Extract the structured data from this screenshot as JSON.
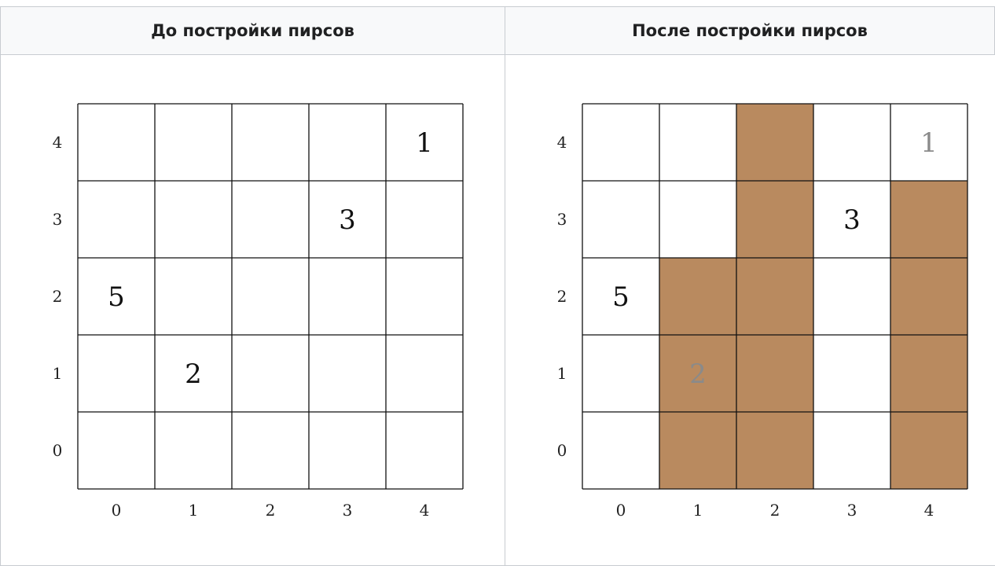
{
  "headers": {
    "before": "До постройки пирсов",
    "after": "После постройки пирсов"
  },
  "colors": {
    "pier": "#b98a5f",
    "grid_line": "#111111",
    "number_normal": "#111111",
    "number_faded": "#8a8a8a"
  },
  "chart_data": [
    {
      "type": "table",
      "grid_size": 5,
      "x_ticks": [
        "0",
        "1",
        "2",
        "3",
        "4"
      ],
      "y_ticks": [
        "0",
        "1",
        "2",
        "3",
        "4"
      ],
      "numbers": [
        {
          "col": 4,
          "row": 4,
          "value": "1",
          "faded": false
        },
        {
          "col": 3,
          "row": 3,
          "value": "3",
          "faded": false
        },
        {
          "col": 0,
          "row": 2,
          "value": "5",
          "faded": false
        },
        {
          "col": 1,
          "row": 1,
          "value": "2",
          "faded": false
        }
      ],
      "filled": []
    },
    {
      "type": "table",
      "grid_size": 5,
      "x_ticks": [
        "0",
        "1",
        "2",
        "3",
        "4"
      ],
      "y_ticks": [
        "0",
        "1",
        "2",
        "3",
        "4"
      ],
      "numbers": [
        {
          "col": 4,
          "row": 4,
          "value": "1",
          "faded": true
        },
        {
          "col": 3,
          "row": 3,
          "value": "3",
          "faded": false
        },
        {
          "col": 0,
          "row": 2,
          "value": "5",
          "faded": false
        },
        {
          "col": 1,
          "row": 1,
          "value": "2",
          "faded": true
        }
      ],
      "filled": [
        {
          "col": 1,
          "row": 0
        },
        {
          "col": 1,
          "row": 1
        },
        {
          "col": 1,
          "row": 2
        },
        {
          "col": 2,
          "row": 0
        },
        {
          "col": 2,
          "row": 1
        },
        {
          "col": 2,
          "row": 2
        },
        {
          "col": 2,
          "row": 3
        },
        {
          "col": 2,
          "row": 4
        },
        {
          "col": 4,
          "row": 0
        },
        {
          "col": 4,
          "row": 1
        },
        {
          "col": 4,
          "row": 2
        },
        {
          "col": 4,
          "row": 3
        }
      ]
    }
  ]
}
